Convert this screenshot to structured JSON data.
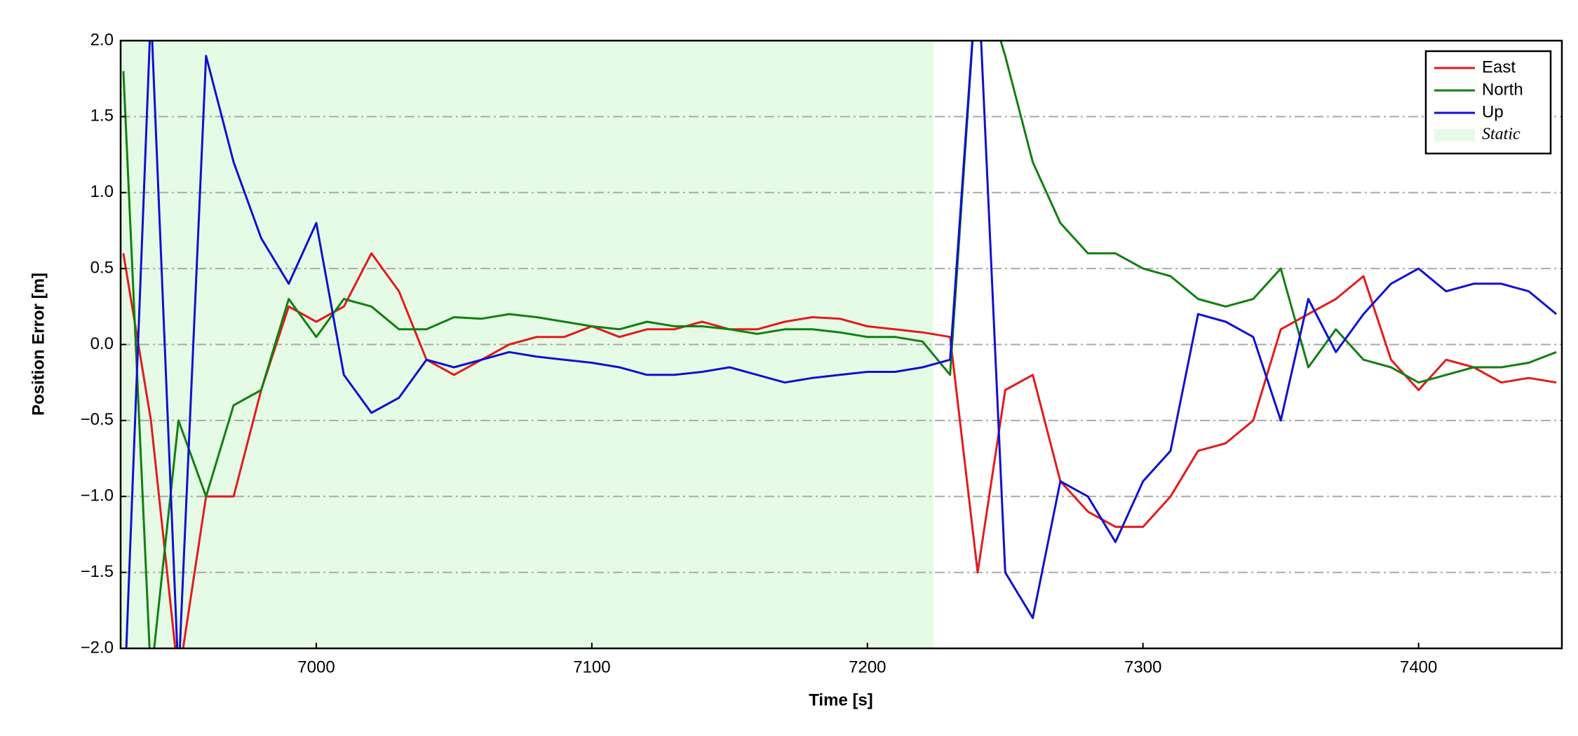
{
  "chart_data": {
    "type": "line",
    "x_label": "Time [s]",
    "y_label": "Position Error [m]",
    "x": [
      6930,
      6940,
      6950,
      6960,
      6970,
      6980,
      6990,
      7000,
      7010,
      7020,
      7030,
      7040,
      7050,
      7060,
      7070,
      7080,
      7090,
      7100,
      7110,
      7120,
      7130,
      7140,
      7150,
      7160,
      7170,
      7180,
      7190,
      7200,
      7210,
      7220,
      7230,
      7240,
      7250,
      7260,
      7270,
      7280,
      7290,
      7300,
      7310,
      7320,
      7330,
      7340,
      7350,
      7360,
      7370,
      7380,
      7390,
      7400,
      7410,
      7420,
      7430,
      7440,
      7450
    ],
    "series": [
      {
        "name": "East",
        "color": "#e31a1c",
        "values": [
          0.6,
          -0.5,
          -2.2,
          -1.0,
          -1.0,
          -0.3,
          0.25,
          0.15,
          0.25,
          0.6,
          0.35,
          -0.1,
          -0.2,
          -0.1,
          0.0,
          0.05,
          0.05,
          0.12,
          0.05,
          0.1,
          0.1,
          0.15,
          0.1,
          0.1,
          0.15,
          0.18,
          0.17,
          0.12,
          0.1,
          0.08,
          0.05,
          -1.5,
          -0.3,
          -0.2,
          -0.9,
          -1.1,
          -1.2,
          -1.2,
          -1.0,
          -0.7,
          -0.65,
          -0.5,
          0.1,
          0.2,
          0.3,
          0.45,
          -0.1,
          -0.3,
          -0.1,
          -0.15,
          -0.25,
          -0.22,
          -0.25
        ]
      },
      {
        "name": "North",
        "color": "#108010",
        "values": [
          1.8,
          -2.2,
          -0.5,
          -1.0,
          -0.4,
          -0.3,
          0.3,
          0.05,
          0.3,
          0.25,
          0.1,
          0.1,
          0.18,
          0.17,
          0.2,
          0.18,
          0.15,
          0.12,
          0.1,
          0.15,
          0.12,
          0.12,
          0.1,
          0.07,
          0.1,
          0.1,
          0.08,
          0.05,
          0.05,
          0.02,
          -0.2,
          2.5,
          1.9,
          1.2,
          0.8,
          0.6,
          0.6,
          0.5,
          0.45,
          0.3,
          0.25,
          0.3,
          0.5,
          -0.15,
          0.1,
          -0.1,
          -0.15,
          -0.25,
          -0.2,
          -0.15,
          -0.15,
          -0.12,
          -0.05
        ]
      },
      {
        "name": "Up",
        "color": "#1010d0",
        "values": [
          -2.5,
          2.2,
          -2.2,
          1.9,
          1.2,
          0.7,
          0.4,
          0.8,
          -0.2,
          -0.45,
          -0.35,
          -0.1,
          -0.15,
          -0.1,
          -0.05,
          -0.08,
          -0.1,
          -0.12,
          -0.15,
          -0.2,
          -0.2,
          -0.18,
          -0.15,
          -0.2,
          -0.25,
          -0.22,
          -0.2,
          -0.18,
          -0.18,
          -0.15,
          -0.1,
          2.5,
          -1.5,
          -1.8,
          -0.9,
          -1.0,
          -1.3,
          -0.9,
          -0.7,
          0.2,
          0.15,
          0.05,
          -0.5,
          0.3,
          -0.05,
          0.2,
          0.4,
          0.5,
          0.35,
          0.4,
          0.4,
          0.35,
          0.2
        ]
      }
    ],
    "shaded_regions": [
      {
        "name": "Static",
        "x0": 6929,
        "x1": 7224,
        "color": "#e6fbe6"
      }
    ],
    "xlim": [
      6929,
      7452
    ],
    "xticks": [
      7000,
      7100,
      7200,
      7300,
      7400
    ],
    "ylim": [
      -2,
      2
    ],
    "yticks": [
      {
        "value": -2,
        "label": "−2.0"
      },
      {
        "value": -1.5,
        "label": "−1.5"
      },
      {
        "value": -1,
        "label": "−1.0"
      },
      {
        "value": -0.5,
        "label": "−0.5"
      },
      {
        "value": 0,
        "label": "0.0"
      },
      {
        "value": 0.5,
        "label": "0.5"
      },
      {
        "value": 1,
        "label": "1.0"
      },
      {
        "value": 1.5,
        "label": "1.5"
      },
      {
        "value": 2,
        "label": "2.0"
      }
    ],
    "grid": true,
    "legend": "upper right"
  }
}
